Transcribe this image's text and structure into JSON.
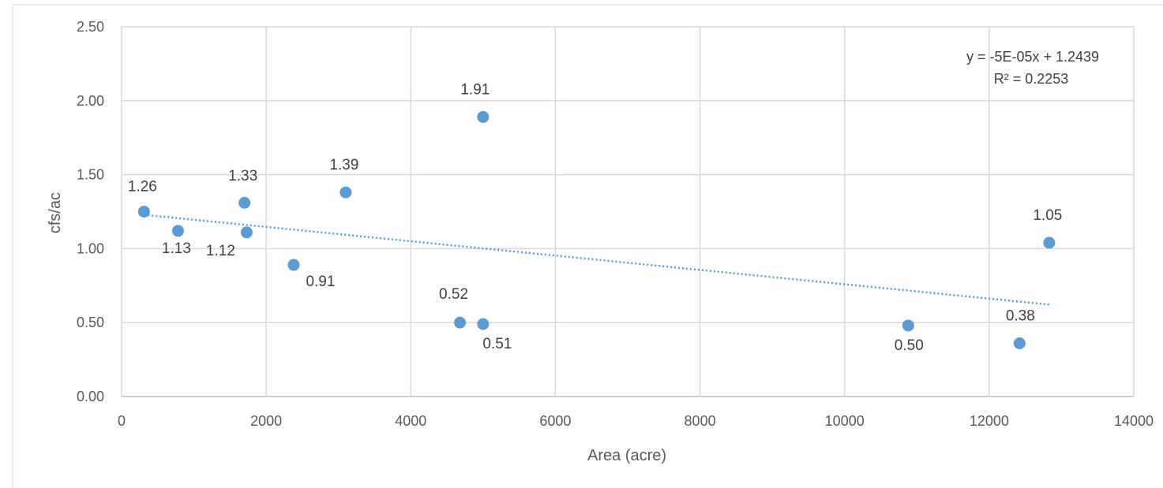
{
  "chart_data": {
    "type": "scatter",
    "xlabel": "Area (acre)",
    "ylabel": "cfs/ac",
    "xlim": [
      0,
      14000
    ],
    "ylim": [
      0,
      2.5
    ],
    "x_ticks": [
      "0",
      "2000",
      "4000",
      "6000",
      "8000",
      "10000",
      "12000",
      "14000"
    ],
    "y_ticks": [
      "0.00",
      "0.50",
      "1.00",
      "1.50",
      "2.00",
      "2.50"
    ],
    "grid": true,
    "point_color": "#5B9BD5",
    "series": [
      {
        "points": [
          {
            "x": 310,
            "y": 1.25,
            "label": "1.26"
          },
          {
            "x": 780,
            "y": 1.12,
            "label": "1.13"
          },
          {
            "x": 1700,
            "y": 1.31,
            "label": "1.33"
          },
          {
            "x": 1730,
            "y": 1.11,
            "label": "1.12"
          },
          {
            "x": 2380,
            "y": 0.89,
            "label": "0.91"
          },
          {
            "x": 3100,
            "y": 1.38,
            "label": "1.39"
          },
          {
            "x": 4680,
            "y": 0.5,
            "label": "0.52"
          },
          {
            "x": 5000,
            "y": 1.89,
            "label": "1.91"
          },
          {
            "x": 5000,
            "y": 0.49,
            "label": "0.51"
          },
          {
            "x": 10880,
            "y": 0.48,
            "label": "0.50"
          },
          {
            "x": 12420,
            "y": 0.36,
            "label": "0.38"
          },
          {
            "x": 12830,
            "y": 1.04,
            "label": "1.05"
          }
        ]
      }
    ],
    "trendline": {
      "type": "linear",
      "slope": -4.847e-05,
      "intercept": 1.2439,
      "x_range": [
        310,
        12830
      ],
      "equation": "y = -5E-05x + 1.2439",
      "r_squared": "R² = 0.2253",
      "style": "dotted",
      "color": "#5B9BD5"
    }
  }
}
